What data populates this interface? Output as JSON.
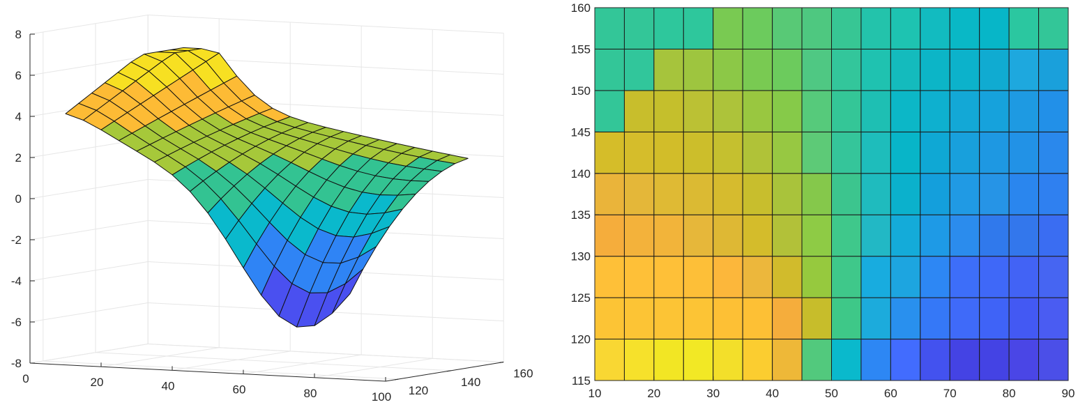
{
  "chart_data": [
    {
      "type": "surface",
      "x_ticks": [
        "0",
        "20",
        "40",
        "60",
        "80",
        "100"
      ],
      "y_ticks": [
        "120",
        "140",
        "160"
      ],
      "z_ticks": [
        "-8",
        "-6",
        "-4",
        "-2",
        "0",
        "2",
        "4",
        "6",
        "8"
      ],
      "xlim": [
        0,
        100
      ],
      "ylim": [
        115,
        160
      ],
      "zlim": [
        -8,
        8
      ],
      "grid": true,
      "colors": [
        "#3e26a8",
        "#4a50f0",
        "#2f84f5",
        "#0ab9cc",
        "#33c392",
        "#a6c83a",
        "#fdbb35",
        "#f7e022"
      ]
    },
    {
      "type": "heatmap",
      "x_ticks": [
        "10",
        "20",
        "30",
        "40",
        "50",
        "60",
        "70",
        "80",
        "90"
      ],
      "y_ticks": [
        "115",
        "120",
        "125",
        "130",
        "135",
        "140",
        "145",
        "150",
        "155",
        "160"
      ],
      "x": [
        10,
        15,
        20,
        25,
        30,
        35,
        40,
        45,
        50,
        55,
        60,
        65,
        70,
        75,
        80,
        85,
        90
      ],
      "y": [
        115,
        120,
        125,
        130,
        135,
        140,
        145,
        150,
        155,
        160
      ],
      "xlim": [
        10,
        90
      ],
      "ylim": [
        115,
        160
      ],
      "grid": true,
      "cell_colors": [
        [
          "#f9d733",
          "#f6e12b",
          "#f2e624",
          "#f2e825",
          "#f3df2a",
          "#fbcd30",
          "#eeb838",
          "#52c97d",
          "#0ab9cc",
          "#2d87f4",
          "#426cfe",
          "#4352ef",
          "#4443e4",
          "#4443e4",
          "#4a46e6",
          "#4b4fe8"
        ],
        [
          "#fcc435",
          "#fcc435",
          "#fcc435",
          "#fcc435",
          "#fdc035",
          "#fdc035",
          "#f5ad3c",
          "#c7bd2b",
          "#3ec888",
          "#1cabdc",
          "#2990ee",
          "#3578f7",
          "#3f6af9",
          "#3f63f7",
          "#4359f3",
          "#4a5cf2"
        ],
        [
          "#fec038",
          "#fec038",
          "#fec038",
          "#fdbf38",
          "#fcb73b",
          "#ecb73c",
          "#d1bb2c",
          "#96c93e",
          "#3fc88a",
          "#18acdf",
          "#1da5e0",
          "#2d87f4",
          "#3d6ef9",
          "#3f68f8",
          "#4263f5",
          "#4665f2"
        ],
        [
          "#f5ad3c",
          "#f3b23b",
          "#f2b43a",
          "#e6b73a",
          "#deb834",
          "#d4bc2b",
          "#b2c139",
          "#8ecb45",
          "#3fc88b",
          "#22b8c5",
          "#14abd9",
          "#1e9ae6",
          "#2b8ced",
          "#3079ec",
          "#3377ec",
          "#3a6df2"
        ],
        [
          "#eab43a",
          "#e4b739",
          "#dfba34",
          "#dbba33",
          "#d6bb2e",
          "#c8be2d",
          "#a9c33b",
          "#85c84b",
          "#3cc58e",
          "#1fbbbe",
          "#0bb1cc",
          "#149fdc",
          "#209ae4",
          "#2694e6",
          "#2a86ee",
          "#2f80f0"
        ],
        [
          "#d5bd29",
          "#d5bd2b",
          "#d2bd29",
          "#ccbe2b",
          "#c5c02f",
          "#b0c238",
          "#97c842",
          "#5dca77",
          "#35c59a",
          "#1ebdbb",
          "#08b5c8",
          "#0fa8d4",
          "#18a0dc",
          "#1e98e2",
          "#2292e6",
          "#2a88ec"
        ],
        [
          "#33c698",
          "#c8be2c",
          "#c5bf2c",
          "#bbc134",
          "#adc33a",
          "#99c740",
          "#86ca49",
          "#56ca7b",
          "#34c697",
          "#1ebfb3",
          "#0cb7c7",
          "#0eb0cf",
          "#13a8d6",
          "#16a2dc",
          "#1e9ae2",
          "#2290e8"
        ],
        [
          "#33c698",
          "#31c69b",
          "#a6c43c",
          "#9ec53f",
          "#8cc847",
          "#79ca52",
          "#6ccb5d",
          "#4fc883",
          "#33c69b",
          "#1fc2b0",
          "#14bbbd",
          "#0cb5c7",
          "#0cb2cb",
          "#10abd1",
          "#1ea8de",
          "#1aa0db"
        ],
        [
          "#33c698",
          "#33c698",
          "#2ec79c",
          "#2ec79c",
          "#79ca52",
          "#6ccb5d",
          "#58c976",
          "#4ec880",
          "#37c694",
          "#23c3ab",
          "#1ec3b1",
          "#12bbc0",
          "#09b8c6",
          "#07b6c8",
          "#2bc7a0",
          "#33c698"
        ]
      ]
    }
  ]
}
